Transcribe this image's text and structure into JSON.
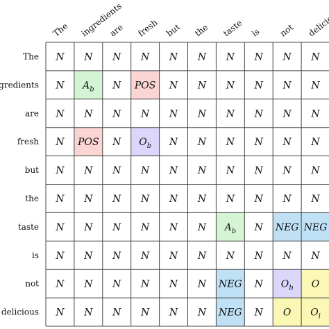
{
  "words": [
    "The",
    "ingredients",
    "are",
    "fresh",
    "but",
    "the",
    "taste",
    "is",
    "not",
    "delicious"
  ],
  "colors": {
    "N": "#ffffff",
    "A": "#d4f5d4",
    "POS": "#fbd4d4",
    "O_purple": "#dcd6fb",
    "NEG": "#bfe0f5",
    "O_yellow": "#fbf7b4",
    "grid": "#444444"
  },
  "cells": [
    [
      {
        "t": "N"
      },
      {
        "t": "N"
      },
      {
        "t": "N"
      },
      {
        "t": "N"
      },
      {
        "t": "N"
      },
      {
        "t": "N"
      },
      {
        "t": "N"
      },
      {
        "t": "N"
      },
      {
        "t": "N"
      },
      {
        "t": "N"
      }
    ],
    [
      {
        "t": "N"
      },
      {
        "t": "A",
        "sub": "b",
        "color": "A"
      },
      {
        "t": "N"
      },
      {
        "t": "POS",
        "color": "POS"
      },
      {
        "t": "N"
      },
      {
        "t": "N"
      },
      {
        "t": "N"
      },
      {
        "t": "N"
      },
      {
        "t": "N"
      },
      {
        "t": "N"
      }
    ],
    [
      {
        "t": "N"
      },
      {
        "t": "N"
      },
      {
        "t": "N"
      },
      {
        "t": "N"
      },
      {
        "t": "N"
      },
      {
        "t": "N"
      },
      {
        "t": "N"
      },
      {
        "t": "N"
      },
      {
        "t": "N"
      },
      {
        "t": "N"
      }
    ],
    [
      {
        "t": "N"
      },
      {
        "t": "POS",
        "color": "POS"
      },
      {
        "t": "N"
      },
      {
        "t": "O",
        "sub": "b",
        "color": "O_purple"
      },
      {
        "t": "N"
      },
      {
        "t": "N"
      },
      {
        "t": "N"
      },
      {
        "t": "N"
      },
      {
        "t": "N"
      },
      {
        "t": "N"
      }
    ],
    [
      {
        "t": "N"
      },
      {
        "t": "N"
      },
      {
        "t": "N"
      },
      {
        "t": "N"
      },
      {
        "t": "N"
      },
      {
        "t": "N"
      },
      {
        "t": "N"
      },
      {
        "t": "N"
      },
      {
        "t": "N"
      },
      {
        "t": "N"
      }
    ],
    [
      {
        "t": "N"
      },
      {
        "t": "N"
      },
      {
        "t": "N"
      },
      {
        "t": "N"
      },
      {
        "t": "N"
      },
      {
        "t": "N"
      },
      {
        "t": "N"
      },
      {
        "t": "N"
      },
      {
        "t": "N"
      },
      {
        "t": "N"
      }
    ],
    [
      {
        "t": "N"
      },
      {
        "t": "N"
      },
      {
        "t": "N"
      },
      {
        "t": "N"
      },
      {
        "t": "N"
      },
      {
        "t": "N"
      },
      {
        "t": "A",
        "sub": "b",
        "color": "A"
      },
      {
        "t": "N"
      },
      {
        "t": "NEG",
        "color": "NEG"
      },
      {
        "t": "NEG",
        "color": "NEG"
      }
    ],
    [
      {
        "t": "N"
      },
      {
        "t": "N"
      },
      {
        "t": "N"
      },
      {
        "t": "N"
      },
      {
        "t": "N"
      },
      {
        "t": "N"
      },
      {
        "t": "N"
      },
      {
        "t": "N"
      },
      {
        "t": "N"
      },
      {
        "t": "N"
      }
    ],
    [
      {
        "t": "N"
      },
      {
        "t": "N"
      },
      {
        "t": "N"
      },
      {
        "t": "N"
      },
      {
        "t": "N"
      },
      {
        "t": "N"
      },
      {
        "t": "NEG",
        "color": "NEG"
      },
      {
        "t": "N"
      },
      {
        "t": "O",
        "sub": "b",
        "color": "O_purple"
      },
      {
        "t": "O",
        "color": "O_yellow"
      }
    ],
    [
      {
        "t": "N"
      },
      {
        "t": "N"
      },
      {
        "t": "N"
      },
      {
        "t": "N"
      },
      {
        "t": "N"
      },
      {
        "t": "N"
      },
      {
        "t": "NEG",
        "color": "NEG"
      },
      {
        "t": "N"
      },
      {
        "t": "O",
        "color": "O_yellow"
      },
      {
        "t": "O",
        "sub": "i",
        "color": "O_yellow"
      }
    ]
  ]
}
